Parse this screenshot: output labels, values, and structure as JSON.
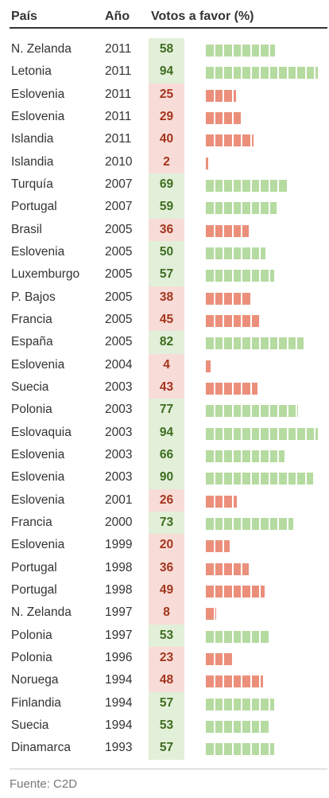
{
  "header": {
    "country": "País",
    "year": "Año",
    "votes": "Votos a favor (%)"
  },
  "source": "Fuente: C2D",
  "colors": {
    "pass_bg": "#e2efd9",
    "fail_bg": "#f8dcd7",
    "pass_text": "#3e6d1f",
    "fail_text": "#a3341d",
    "pass_bar": "#b5dba0",
    "fail_bar": "#eb8f7b",
    "text": "#333333"
  },
  "chart_data": {
    "type": "table",
    "columns": [
      "País",
      "Año",
      "Votos a favor (%)"
    ],
    "scale_max": 100,
    "pass_threshold": 50,
    "rows": [
      {
        "country": "N. Zelanda",
        "year": "2011",
        "value": 58
      },
      {
        "country": "Letonia",
        "year": "2011",
        "value": 94
      },
      {
        "country": "Eslovenia",
        "year": "2011",
        "value": 25
      },
      {
        "country": "Eslovenia",
        "year": "2011",
        "value": 29
      },
      {
        "country": "Islandia",
        "year": "2011",
        "value": 40
      },
      {
        "country": "Islandia",
        "year": "2010",
        "value": 2
      },
      {
        "country": "Turquía",
        "year": "2007",
        "value": 69
      },
      {
        "country": "Portugal",
        "year": "2007",
        "value": 59
      },
      {
        "country": "Brasil",
        "year": "2005",
        "value": 36
      },
      {
        "country": "Eslovenia",
        "year": "2005",
        "value": 50
      },
      {
        "country": "Luxemburgo",
        "year": "2005",
        "value": 57
      },
      {
        "country": "P. Bajos",
        "year": "2005",
        "value": 38
      },
      {
        "country": "Francia",
        "year": "2005",
        "value": 45
      },
      {
        "country": "España",
        "year": "2005",
        "value": 82
      },
      {
        "country": "Eslovenia",
        "year": "2004",
        "value": 4
      },
      {
        "country": "Suecia",
        "year": "2003",
        "value": 43
      },
      {
        "country": "Polonia",
        "year": "2003",
        "value": 77
      },
      {
        "country": "Eslovaquia",
        "year": "2003",
        "value": 94
      },
      {
        "country": "Eslovenia",
        "year": "2003",
        "value": 66
      },
      {
        "country": "Eslovenia",
        "year": "2003",
        "value": 90
      },
      {
        "country": "Eslovenia",
        "year": "2001",
        "value": 26
      },
      {
        "country": "Francia",
        "year": "2000",
        "value": 73
      },
      {
        "country": "Eslovenia",
        "year": "1999",
        "value": 20
      },
      {
        "country": "Portugal",
        "year": "1998",
        "value": 36
      },
      {
        "country": "Portugal",
        "year": "1998",
        "value": 49
      },
      {
        "country": "N. Zelanda",
        "year": "1997",
        "value": 8
      },
      {
        "country": "Polonia",
        "year": "1997",
        "value": 53
      },
      {
        "country": "Polonia",
        "year": "1996",
        "value": 23
      },
      {
        "country": "Noruega",
        "year": "1994",
        "value": 48
      },
      {
        "country": "Finlandia",
        "year": "1994",
        "value": 57
      },
      {
        "country": "Suecia",
        "year": "1994",
        "value": 53
      },
      {
        "country": "Dinamarca",
        "year": "1993",
        "value": 57
      }
    ]
  }
}
